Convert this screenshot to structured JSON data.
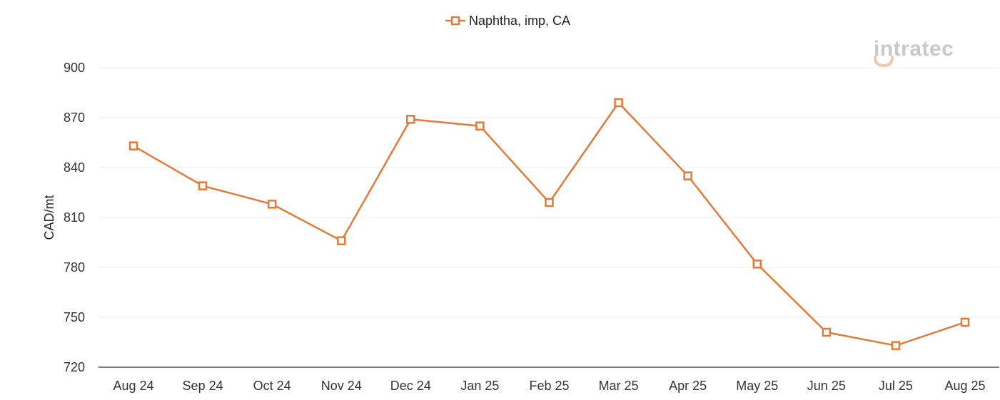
{
  "logo": {
    "text": "intratec"
  },
  "colors": {
    "series": "#e07b39",
    "grid": "#eeeeee",
    "axis": "#555555",
    "logo_gray": "#c9c9c9",
    "logo_accent": "#f0c9a8"
  },
  "chart_data": {
    "type": "line",
    "title": "",
    "xlabel": "",
    "ylabel": "CAD/mt",
    "categories": [
      "Aug 24",
      "Sep 24",
      "Oct 24",
      "Nov 24",
      "Dec 24",
      "Jan 25",
      "Feb 25",
      "Mar 25",
      "Apr 25",
      "May 25",
      "Jun 25",
      "Jul 25",
      "Aug 25"
    ],
    "series": [
      {
        "name": "Naphtha, imp, CA",
        "marker": "square-open",
        "values": [
          853,
          829,
          818,
          796,
          869,
          865,
          819,
          879,
          835,
          782,
          741,
          733,
          747
        ]
      }
    ],
    "ylim": [
      720,
      900
    ],
    "yticks": [
      720,
      750,
      780,
      810,
      840,
      870,
      900
    ],
    "grid": true,
    "legend": "top-center"
  }
}
